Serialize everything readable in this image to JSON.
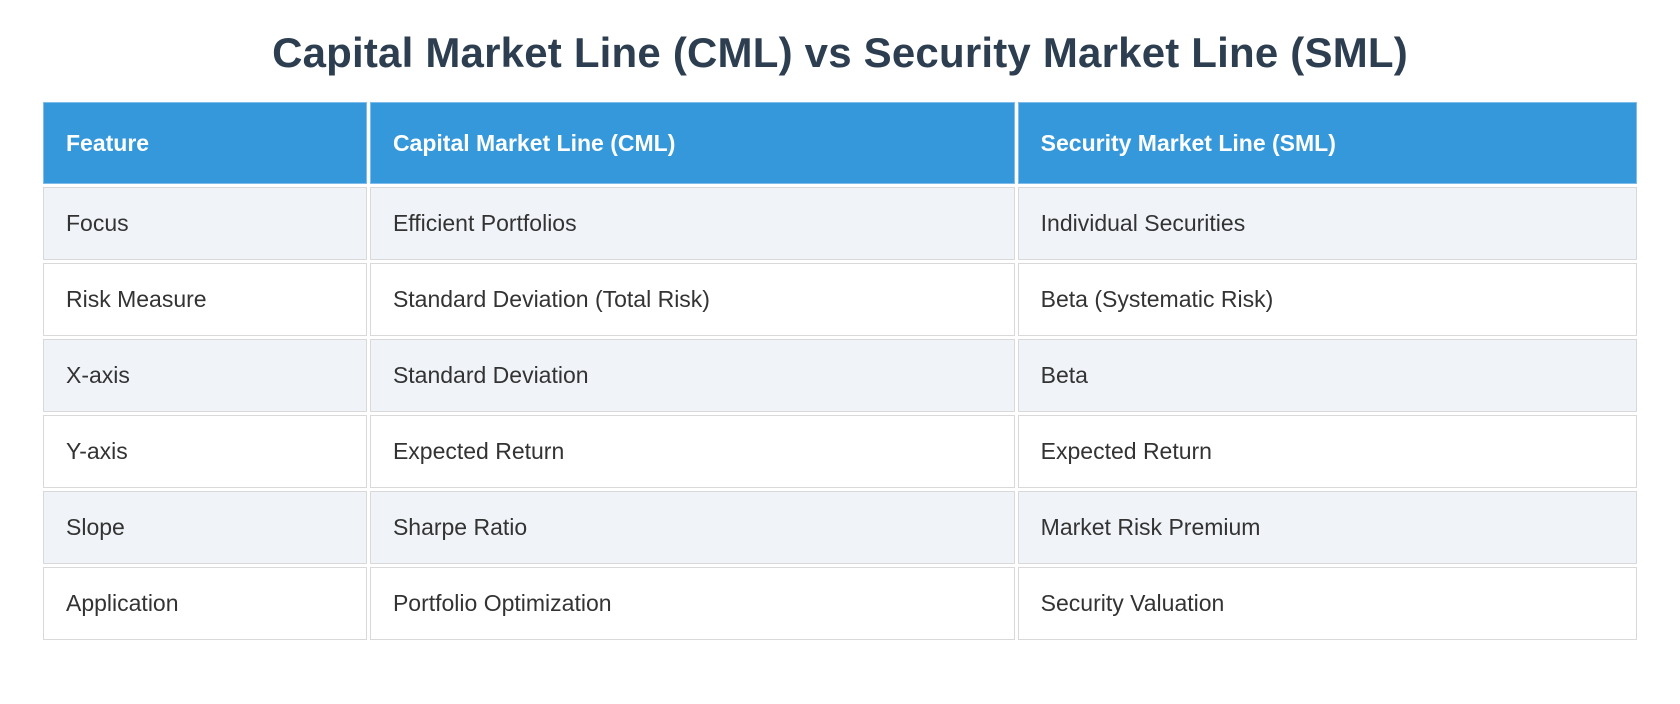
{
  "title": "Capital Market Line (CML) vs Security Market Line (SML)",
  "table": {
    "columns": [
      "Feature",
      "Capital Market Line (CML)",
      "Security Market Line (SML)"
    ],
    "rows": [
      {
        "feature": "Focus",
        "cml": "Efficient Portfolios",
        "sml": "Individual Securities"
      },
      {
        "feature": "Risk Measure",
        "cml": "Standard Deviation (Total Risk)",
        "sml": "Beta (Systematic Risk)"
      },
      {
        "feature": "X-axis",
        "cml": "Standard Deviation",
        "sml": "Beta"
      },
      {
        "feature": "Y-axis",
        "cml": "Expected Return",
        "sml": "Expected Return"
      },
      {
        "feature": "Slope",
        "cml": "Sharpe Ratio",
        "sml": "Market Risk Premium"
      },
      {
        "feature": "Application",
        "cml": "Portfolio Optimization",
        "sml": "Security Valuation"
      }
    ]
  },
  "colors": {
    "page_bg": "#ffffff",
    "title_text": "#2c3e50",
    "header_bg": "#3498db",
    "header_text": "#ffffff",
    "header_border": "#7fbce9",
    "row_bg": "#ffffff",
    "row_alt_bg": "#f0f4f8",
    "border": "#d9d9d9",
    "body_text": "#333333"
  }
}
